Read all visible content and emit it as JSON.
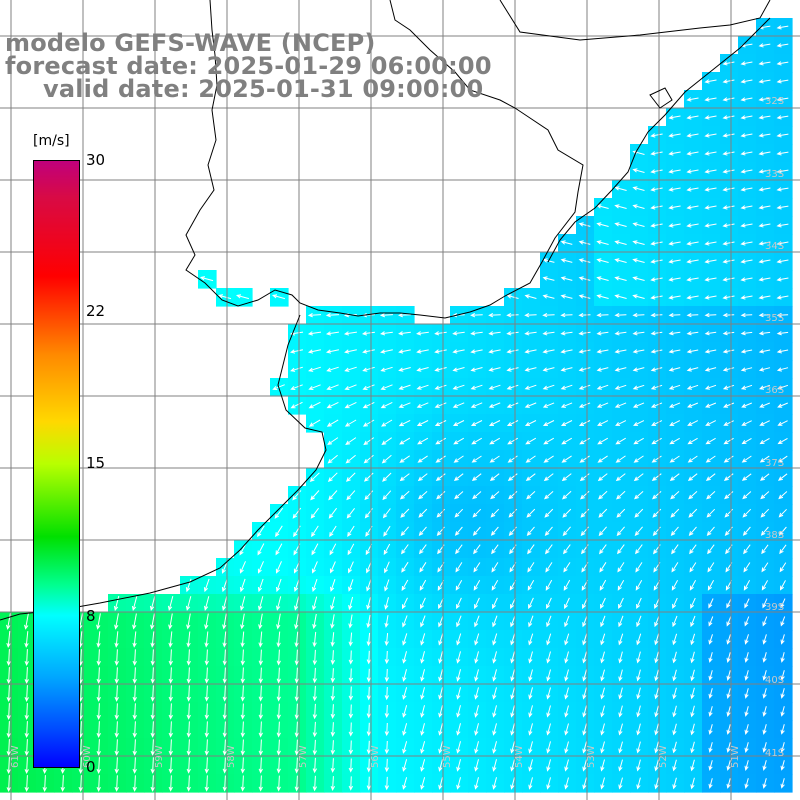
{
  "title": {
    "line1": "modelo GEFS-WAVE (NCEP)",
    "line2": "forecast date: 2025-01-29 06:00:00",
    "line3": "valid date: 2025-01-31 09:00:00"
  },
  "colorbar": {
    "unit": "[m/s]",
    "min": 0,
    "max": 30,
    "tick_labels": [
      "30",
      "22",
      "15",
      "8",
      "0"
    ],
    "colors": [
      "#0000ff",
      "#0048ff",
      "#00a8ff",
      "#00ffff",
      "#00ff90",
      "#00e000",
      "#b8ff00",
      "#ffd800",
      "#ff8a00",
      "#ff0000",
      "#d80a45",
      "#c0007c"
    ]
  },
  "map": {
    "lat_labels": [
      "32S",
      "33S",
      "34S",
      "35S",
      "36S",
      "37S",
      "38S",
      "39S",
      "40S",
      "41S"
    ],
    "lon_labels": [
      "61W",
      "60W",
      "59W",
      "58W",
      "57W",
      "56W",
      "55W",
      "54W",
      "53W",
      "52W",
      "51W"
    ],
    "arrow_color": "#ffffff",
    "coastline_color": "#000000",
    "grid_color": "#808080",
    "land_color": "#ffffff"
  }
}
